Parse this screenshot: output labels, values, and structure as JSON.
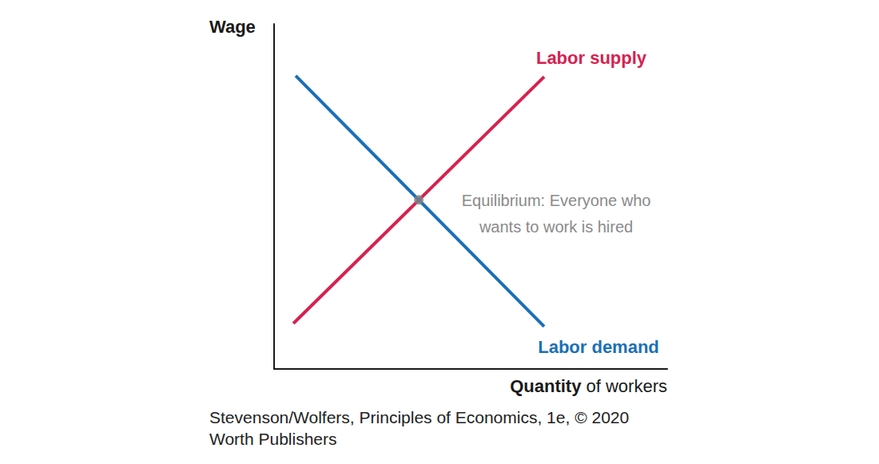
{
  "chart_data": {
    "type": "line",
    "xlabel": "Quantity of workers",
    "ylabel": "Wage",
    "xlim": [
      0,
      10
    ],
    "ylim": [
      0,
      10
    ],
    "grid": false,
    "tick_labels": false,
    "series": [
      {
        "name": "Labor supply",
        "color": "#d6224f",
        "x": [
          0.49,
          6.87
        ],
        "values": [
          1.32,
          8.47
        ]
      },
      {
        "name": "Labor demand",
        "color": "#1a6fb8",
        "x": [
          0.55,
          6.87
        ],
        "values": [
          8.5,
          1.23
        ]
      }
    ],
    "annotations": [
      {
        "text": "Equilibrium: Everyone who\nwants to work is hired",
        "x": 3.68,
        "y": 4.9,
        "color": "#7f7f7f",
        "marker": "circle"
      }
    ],
    "source": "Stevenson/Wolfers, Principles of Economics, 1e, © 2020\nWorth Publishers"
  }
}
